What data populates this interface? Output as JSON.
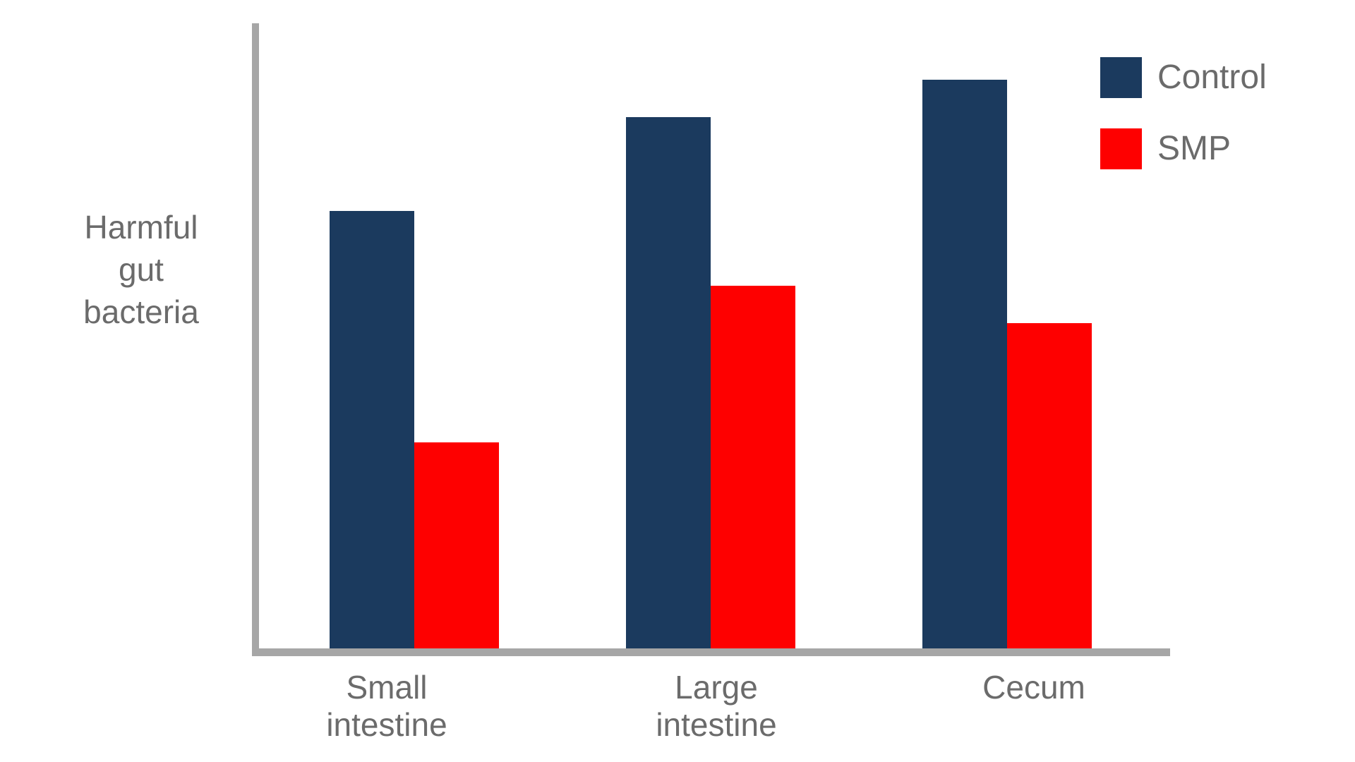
{
  "labels": {
    "y_axis_display": "Harmful\ngut\nbacteria"
  },
  "legend": {
    "items": [
      {
        "label": "Control",
        "color": "#1b3a5e"
      },
      {
        "label": "SMP",
        "color": "#fe0000"
      }
    ]
  },
  "colors": {
    "axis": "#a6a6a6",
    "text": "#6b6b6b",
    "background": "#ffffff"
  },
  "chart_data": {
    "type": "bar",
    "title": "",
    "categories": [
      "Small intestine",
      "Large intestine",
      "Cecum"
    ],
    "category_display": [
      "Small\nintestine",
      "Large\nintestine",
      "Cecum"
    ],
    "series": [
      {
        "name": "Control",
        "color": "#1b3a5e",
        "values": [
          70,
          85,
          91
        ]
      },
      {
        "name": "SMP",
        "color": "#fe0000",
        "values": [
          33,
          58,
          52
        ]
      }
    ],
    "xlabel": "",
    "ylabel": "Harmful gut bacteria",
    "ylim": [
      0,
      100
    ],
    "y_units": "arbitrary units (no numeric axis or ticks shown)",
    "grid": false,
    "legend_position": "top-right"
  }
}
